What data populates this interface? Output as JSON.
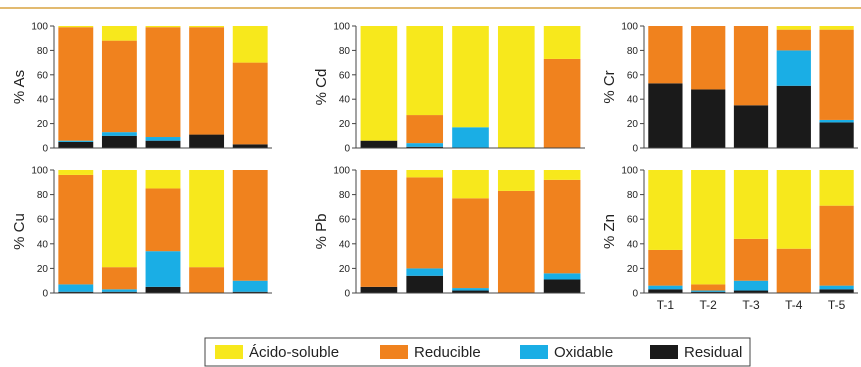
{
  "legend": {
    "series": [
      {
        "name": "Ácido-soluble",
        "color": "#f7e81c"
      },
      {
        "name": "Reducible",
        "color": "#f0821e"
      },
      {
        "name": "Oxidable",
        "color": "#1aaee5"
      },
      {
        "name": "Residual",
        "color": "#1a1a1a"
      }
    ]
  },
  "chart_data": [
    {
      "type": "bar",
      "stacked": true,
      "ylabel": "% As",
      "categories": [
        null,
        null,
        null,
        null,
        null
      ],
      "ylim": [
        0,
        100
      ],
      "yticks": [
        0,
        20,
        40,
        60,
        80,
        100
      ],
      "series": [
        {
          "values": [
            1,
            12,
            1,
            1,
            30
          ]
        },
        {
          "values": [
            93,
            75,
            90,
            88,
            67
          ]
        },
        {
          "values": [
            1,
            3,
            3,
            0,
            0
          ]
        },
        {
          "values": [
            5,
            10,
            6,
            11,
            3
          ]
        }
      ]
    },
    {
      "type": "bar",
      "stacked": true,
      "ylabel": "% Cd",
      "categories": [
        null,
        null,
        null,
        null,
        null
      ],
      "ylim": [
        0,
        100
      ],
      "yticks": [
        0,
        20,
        40,
        60,
        80,
        100
      ],
      "series": [
        {
          "values": [
            94,
            73,
            83,
            100,
            27
          ]
        },
        {
          "values": [
            0,
            23,
            0,
            0,
            73
          ]
        },
        {
          "values": [
            0,
            3,
            17,
            0,
            0
          ]
        },
        {
          "values": [
            6,
            1,
            0,
            0,
            0
          ]
        }
      ]
    },
    {
      "type": "bar",
      "stacked": true,
      "ylabel": "% Cr",
      "categories": [
        null,
        null,
        null,
        null,
        null
      ],
      "ylim": [
        0,
        100
      ],
      "yticks": [
        0,
        20,
        40,
        60,
        80,
        100
      ],
      "series": [
        {
          "values": [
            0,
            0,
            0,
            3,
            3
          ]
        },
        {
          "values": [
            47,
            52,
            65,
            17,
            74
          ]
        },
        {
          "values": [
            0,
            0,
            0,
            29,
            2
          ]
        },
        {
          "values": [
            53,
            48,
            35,
            51,
            21
          ]
        }
      ]
    },
    {
      "type": "bar",
      "stacked": true,
      "ylabel": "% Cu",
      "categories": [
        null,
        null,
        null,
        null,
        null
      ],
      "ylim": [
        0,
        100
      ],
      "yticks": [
        0,
        20,
        40,
        60,
        80,
        100
      ],
      "series": [
        {
          "values": [
            4,
            79,
            15,
            79,
            0
          ]
        },
        {
          "values": [
            89,
            18,
            51,
            21,
            90
          ]
        },
        {
          "values": [
            6,
            2,
            29,
            0,
            9
          ]
        },
        {
          "values": [
            1,
            1,
            5,
            0,
            1
          ]
        }
      ]
    },
    {
      "type": "bar",
      "stacked": true,
      "ylabel": "% Pb",
      "categories": [
        null,
        null,
        null,
        null,
        null
      ],
      "ylim": [
        0,
        100
      ],
      "yticks": [
        0,
        20,
        40,
        60,
        80,
        100
      ],
      "series": [
        {
          "values": [
            0,
            6,
            23,
            17,
            8
          ]
        },
        {
          "values": [
            95,
            74,
            73,
            83,
            76
          ]
        },
        {
          "values": [
            0,
            6,
            2,
            0,
            5
          ]
        },
        {
          "values": [
            5,
            14,
            2,
            0,
            11
          ]
        }
      ]
    },
    {
      "type": "bar",
      "stacked": true,
      "ylabel": "% Zn",
      "categories": [
        "T-1",
        "T-2",
        "T-3",
        "T-4",
        "T-5"
      ],
      "ylim": [
        0,
        100
      ],
      "yticks": [
        0,
        20,
        40,
        60,
        80,
        100
      ],
      "series": [
        {
          "values": [
            65,
            93,
            56,
            64,
            29
          ]
        },
        {
          "values": [
            29,
            5,
            34,
            36,
            65
          ]
        },
        {
          "values": [
            3,
            1,
            8,
            0,
            3
          ]
        },
        {
          "values": [
            3,
            1,
            2,
            0,
            3
          ]
        }
      ]
    }
  ]
}
